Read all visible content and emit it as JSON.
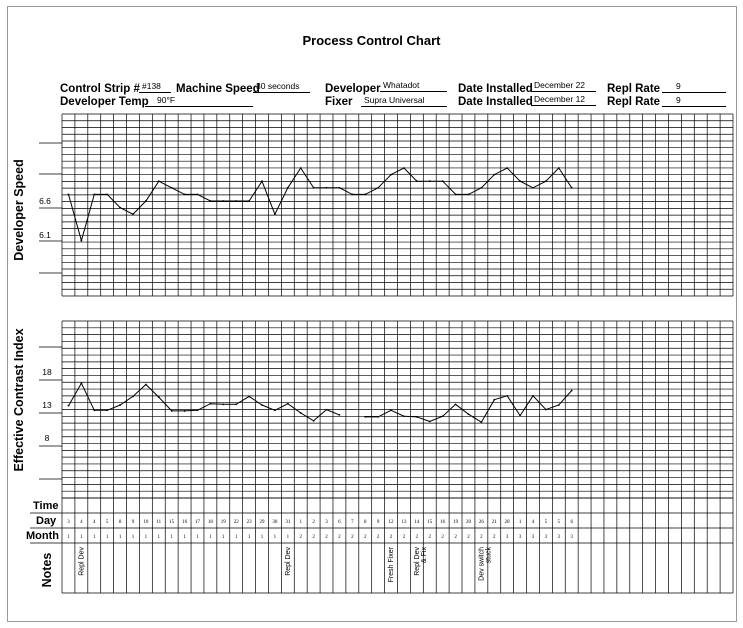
{
  "header": {
    "title": "Process Control Chart",
    "control_strip_label": "Control Strip #",
    "control_strip_value": "#138",
    "machine_speed_label": "Machine Speed",
    "machine_speed_value": "30 seconds",
    "developer_label": "Developer",
    "developer_value": "Whatadot",
    "date_installed_label": "Date Installed",
    "date_installed_dev": "December 22",
    "repl_rate_label": "Repl Rate",
    "repl_rate_dev": "9",
    "developer_temp_label": "Developer Temp",
    "developer_temp_value": "90°F",
    "fixer_label": "Fixer",
    "fixer_value": "Supra Universal",
    "date_installed_fix": "December 12",
    "repl_rate_fix": "9"
  },
  "row_labels": {
    "time": "Time",
    "day": "Day",
    "month": "Month",
    "notes": "Notes"
  },
  "day_values": [
    "3",
    "4",
    "4",
    "5",
    "8",
    "9",
    "10",
    "11",
    "15",
    "16",
    "17",
    "18",
    "19",
    "22",
    "23",
    "29",
    "30",
    "31",
    "1",
    "2",
    "3",
    "6",
    "7",
    "8",
    "9",
    "12",
    "13",
    "14",
    "15",
    "16",
    "19",
    "20",
    "26",
    "21",
    "28",
    "1",
    "4",
    "5",
    "5",
    "6"
  ],
  "month_values": [
    "1",
    "1",
    "1",
    "1",
    "1",
    "1",
    "1",
    "1",
    "1",
    "1",
    "1",
    "1",
    "1",
    "1",
    "1",
    "1",
    "1",
    "1",
    "2",
    "2",
    "2",
    "2",
    "2",
    "2",
    "2",
    "2",
    "2",
    "2",
    "2",
    "2",
    "2",
    "2",
    "2",
    "2",
    "3",
    "3",
    "3",
    "3",
    "3",
    "3"
  ],
  "notes": [
    {
      "col": 1,
      "text": "Repl Dev"
    },
    {
      "col": 17,
      "text": "Repl Dev"
    },
    {
      "col": 25,
      "text": "Fresh Fixer"
    },
    {
      "col": 27,
      "text": "Repl Dev & Fix"
    },
    {
      "col": 32,
      "text": "Dev switch stuck"
    }
  ],
  "chart_data": [
    {
      "type": "line",
      "ylabel": "Developer Speed",
      "yticks": [
        "6.6",
        "6.1"
      ],
      "x": [
        1,
        2,
        3,
        4,
        5,
        6,
        7,
        8,
        9,
        10,
        11,
        12,
        13,
        14,
        15,
        16,
        17,
        18,
        19,
        20,
        21,
        22,
        23,
        24,
        25,
        26,
        27,
        28,
        29,
        30,
        31,
        32,
        33,
        34,
        35,
        36,
        37,
        38,
        39,
        40
      ],
      "series": [
        {
          "values": [
            6.7,
            6.0,
            6.7,
            6.7,
            6.5,
            6.4,
            6.6,
            6.9,
            6.8,
            6.7,
            6.7,
            6.6,
            6.6,
            6.6,
            6.6,
            6.9,
            6.4,
            6.8,
            7.1,
            6.8,
            6.8,
            6.8,
            6.7,
            6.7,
            6.8,
            7.0,
            7.1,
            6.9,
            6.9,
            6.9,
            6.7,
            6.7,
            6.8,
            7.0,
            7.1,
            6.9,
            6.8,
            6.9,
            7.1,
            6.8
          ]
        }
      ]
    },
    {
      "type": "line",
      "ylabel": "Effective Contrast Index",
      "yticks": [
        "18",
        "13",
        "8"
      ],
      "x": [
        1,
        2,
        3,
        4,
        5,
        6,
        7,
        8,
        9,
        10,
        11,
        12,
        13,
        14,
        15,
        16,
        17,
        18,
        19,
        20,
        21,
        22,
        23,
        24,
        25,
        26,
        27,
        28,
        29,
        30,
        31,
        32,
        33,
        34,
        35,
        36,
        37,
        38,
        39,
        40
      ],
      "series": [
        {
          "values": [
            12.9,
            16.3,
            12.2,
            12.2,
            13.0,
            14.3,
            16.1,
            14.2,
            12.1,
            12.1,
            12.2,
            13.2,
            13.1,
            13.1,
            14.3,
            13.0,
            12.2,
            13.2,
            11.8,
            10.6,
            12.3,
            11.5,
            null,
            11.2,
            11.2,
            12.2,
            11.3,
            11.2,
            10.5,
            11.3,
            13.1,
            11.6,
            10.4,
            13.8,
            14.4,
            11.4,
            14.4,
            12.3,
            13.0,
            15.2
          ],
          "segments": [
            [
              1,
              22
            ],
            [
              24,
              40
            ]
          ]
        }
      ]
    }
  ]
}
